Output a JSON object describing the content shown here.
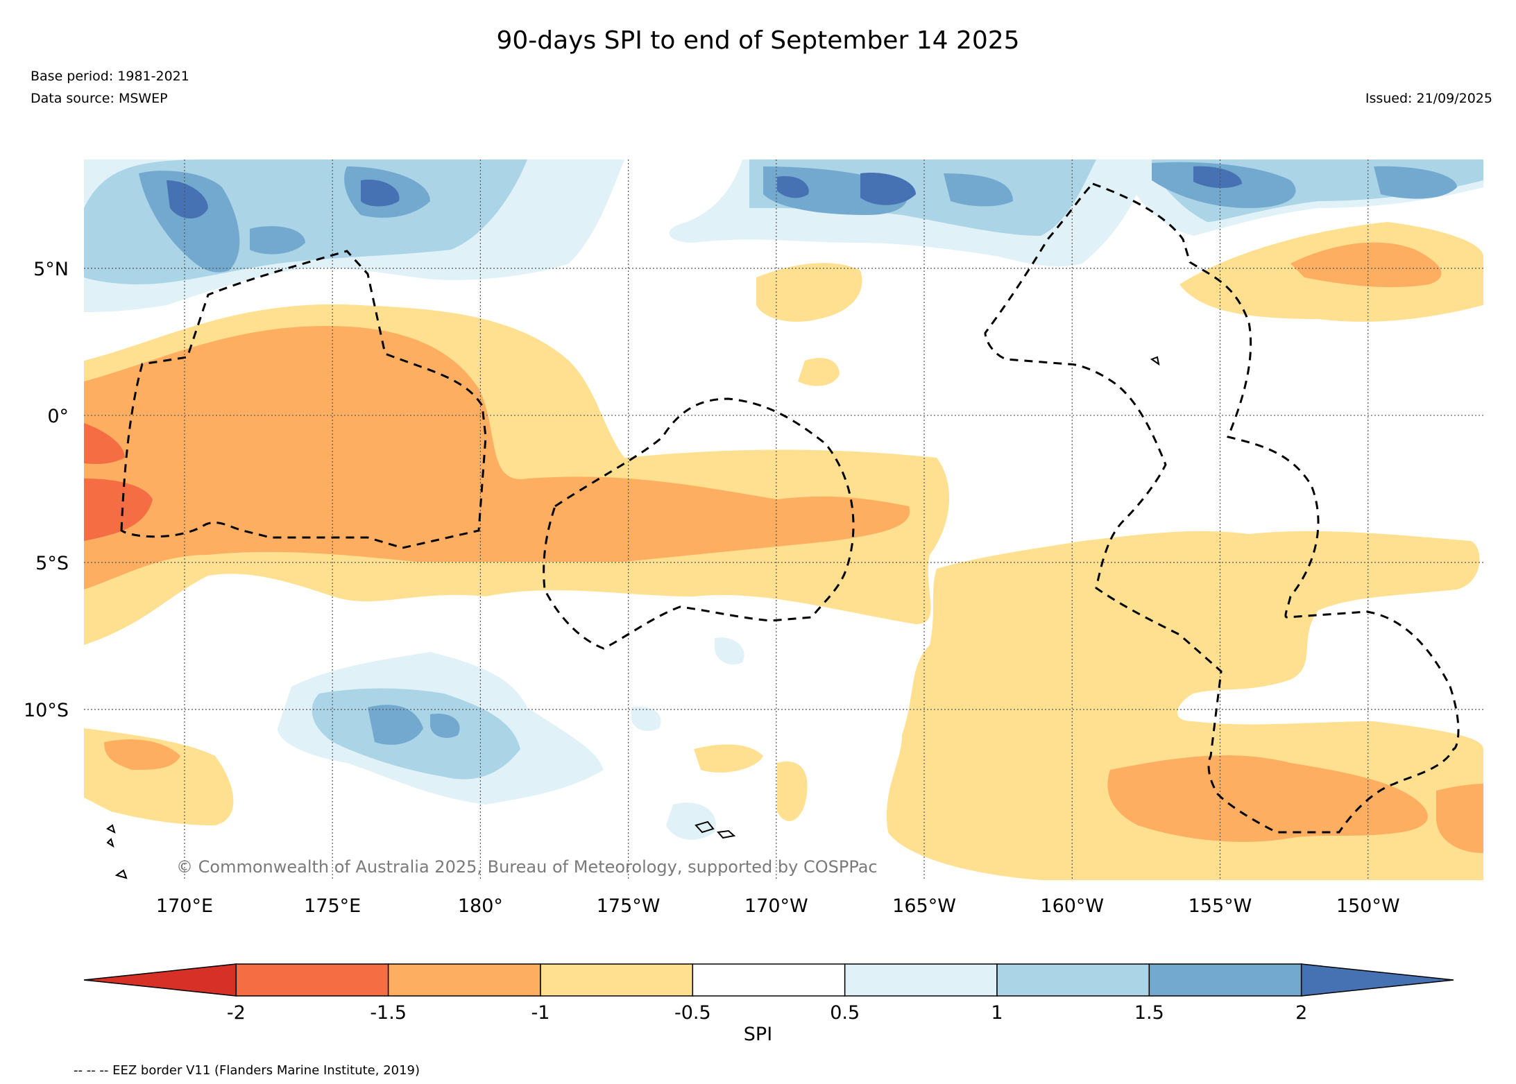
{
  "header": {
    "title": "90-days SPI to end of September 14 2025",
    "base_period": "Base period: 1981-2021",
    "data_source": "Data source: MSWEP",
    "issued": "Issued: 21/09/2025"
  },
  "map": {
    "extent": {
      "lon_min": 166.6,
      "lon_max": 213.9,
      "lat_min": -15.8,
      "lat_max": 8.7
    },
    "lon_ticks": [
      {
        "value": 170,
        "label": "170°E"
      },
      {
        "value": 175,
        "label": "175°E"
      },
      {
        "value": 180,
        "label": "180°"
      },
      {
        "value": 185,
        "label": "175°W"
      },
      {
        "value": 190,
        "label": "170°W"
      },
      {
        "value": 195,
        "label": "165°W"
      },
      {
        "value": 200,
        "label": "160°W"
      },
      {
        "value": 205,
        "label": "155°W"
      },
      {
        "value": 210,
        "label": "150°W"
      }
    ],
    "lat_ticks": [
      {
        "value": 5,
        "label": "5°N"
      },
      {
        "value": 0,
        "label": "0°"
      },
      {
        "value": -5,
        "label": "5°S"
      },
      {
        "value": -10,
        "label": "10°S"
      }
    ],
    "gridlines": true,
    "credit": "© Commonwealth of Australia 2025, Bureau of Meteorology, supported by COSPPac",
    "regions": [
      {
        "category": "wet_2_plus",
        "color": "#4671b2"
      },
      {
        "category": "wet_1.5_2",
        "color": "#74a9cf"
      },
      {
        "category": "wet_1_1.5",
        "color": "#abd5e6"
      },
      {
        "category": "wet_0.5_1",
        "color": "#e0f2f8"
      },
      {
        "category": "dry_-1_-0.5",
        "color": "#fee090"
      },
      {
        "category": "dry_-1.5_-1",
        "color": "#fdae61"
      },
      {
        "category": "dry_-2_-1.5",
        "color": "#f46d43"
      }
    ]
  },
  "colorbar": {
    "label": "SPI",
    "ticks": [
      "-2",
      "-1.5",
      "-1",
      "-0.5",
      "0.5",
      "1",
      "1.5",
      "2"
    ],
    "bins": [
      {
        "range": "< -2",
        "color": "#d73027"
      },
      {
        "range": "-2 to -1.5",
        "color": "#f46d43"
      },
      {
        "range": "-1.5 to -1",
        "color": "#fdae61"
      },
      {
        "range": "-1 to -0.5",
        "color": "#fee090"
      },
      {
        "range": "-0.5 to 0.5",
        "color": "#ffffff"
      },
      {
        "range": "0.5 to 1",
        "color": "#e0f2f8"
      },
      {
        "range": "1 to 1.5",
        "color": "#abd5e6"
      },
      {
        "range": "1.5 to 2",
        "color": "#74a9cf"
      },
      {
        "range": "> 2",
        "color": "#4671b2"
      }
    ]
  },
  "legend": {
    "eez": "-- -- -- EEZ border V11 (Flanders Marine Institute, 2019)"
  }
}
